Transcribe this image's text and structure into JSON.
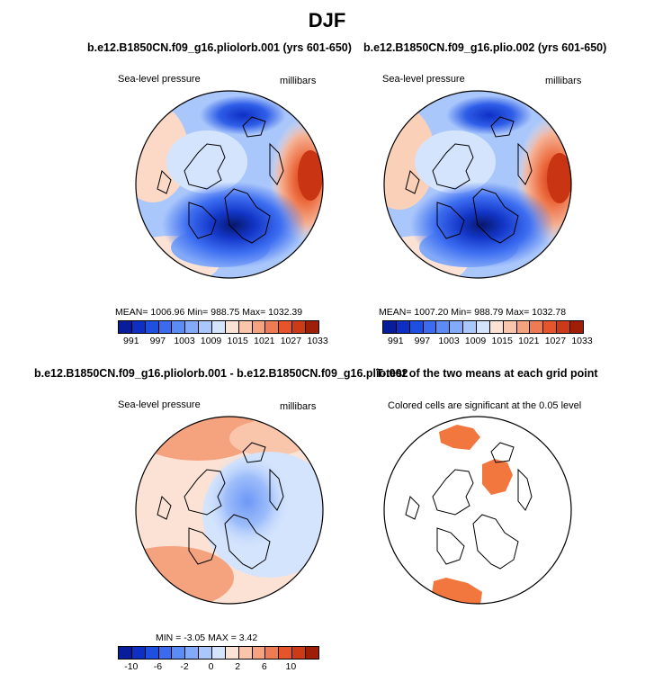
{
  "figure": {
    "title": "DJF"
  },
  "panels": [
    {
      "run": "b.e12.B1850CN.f09_g16.pliolorb.001 (yrs 601-650)",
      "left_label": "Sea-level pressure",
      "right_label": "millibars",
      "stats": "MEAN= 1006.96   Min= 988.75   Max= 1032.39"
    },
    {
      "run": "b.e12.B1850CN.f09_g16.plio.002 (yrs 601-650)",
      "left_label": "Sea-level pressure",
      "right_label": "millibars",
      "stats": "MEAN= 1007.20   Min= 988.79   Max= 1032.78"
    },
    {
      "run": "b.e12.B1850CN.f09_g16.pliolorb.001 - b.e12.B1850CN.f09_g16.plio.002",
      "left_label": "Sea-level pressure",
      "right_label": "millibars",
      "stats": "MIN =   -3.05  MAX =    3.42"
    },
    {
      "run": "T-test of the two means at each grid point",
      "left_label": "Colored cells are significant at the 0.05 level"
    }
  ],
  "colors": {
    "slp": [
      "#081d9a",
      "#0d2fc4",
      "#1f4fe0",
      "#3b6cf0",
      "#5b8bf5",
      "#82aaf8",
      "#aac7fb",
      "#d4e4fd",
      "#fbe2d5",
      "#f9c6ac",
      "#f5a27e",
      "#ef7b52",
      "#e4552d",
      "#cc3a17",
      "#9e1e08"
    ],
    "diff": [
      "#081d9a",
      "#0d2fc4",
      "#1f4fe0",
      "#3b6cf0",
      "#5b8bf5",
      "#82aaf8",
      "#aac7fb",
      "#d4e4fd",
      "#fbe2d5",
      "#f9c6ac",
      "#f5a27e",
      "#ef7b52",
      "#e4552d",
      "#cc3a17",
      "#9e1e08"
    ],
    "significant": "#f2773f"
  },
  "colorbars": {
    "slp": [
      "991",
      "997",
      "1003",
      "1009",
      "1015",
      "1021",
      "1027",
      "1033"
    ],
    "diff": [
      "-10",
      "-6",
      "-2",
      "0",
      "2",
      "6",
      "10"
    ]
  }
}
